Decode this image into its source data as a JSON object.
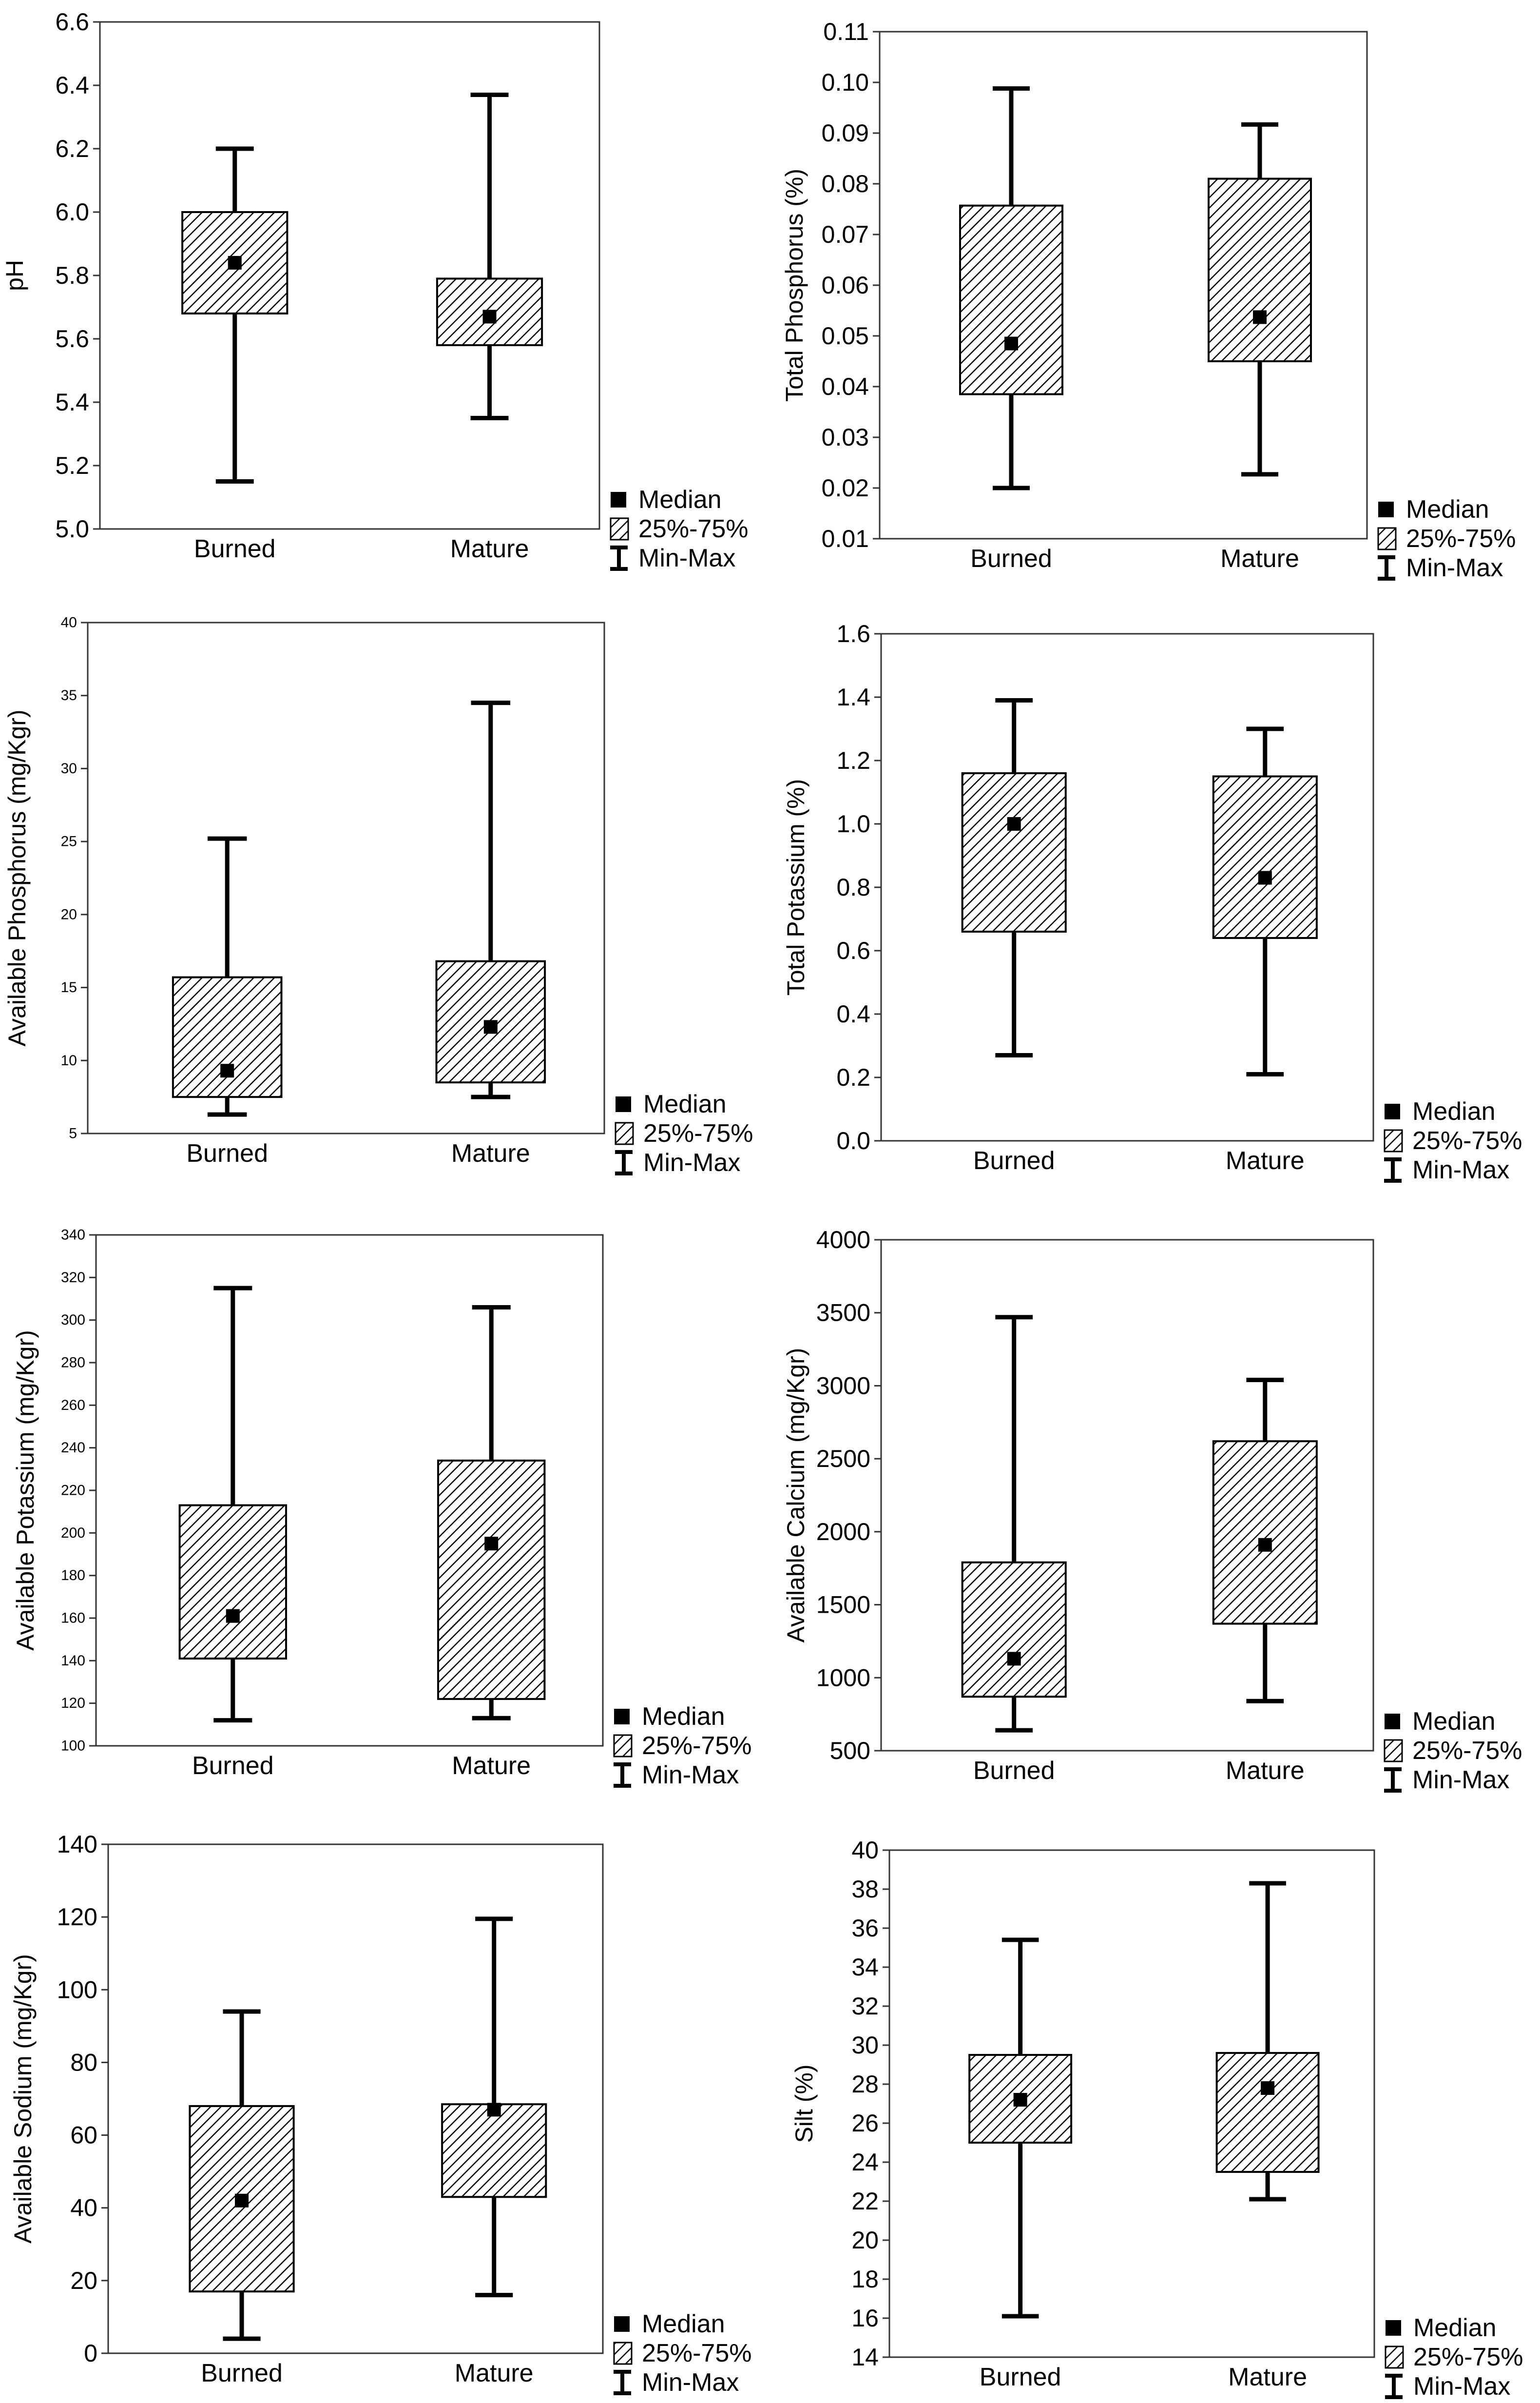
{
  "chart_data": [
    {
      "type": "boxplot",
      "ylabel": "pH",
      "ylim": [
        5.0,
        6.6
      ],
      "yticks": [
        "5.0",
        "5.2",
        "5.4",
        "5.6",
        "5.8",
        "6.0",
        "6.2",
        "6.4",
        "6.6"
      ],
      "categories": [
        "Burned",
        "Mature"
      ],
      "boxes": [
        {
          "min": 5.15,
          "q1": 5.68,
          "median": 5.84,
          "q3": 6.0,
          "max": 6.2
        },
        {
          "min": 5.35,
          "q1": 5.58,
          "median": 5.67,
          "q3": 5.79,
          "max": 6.37
        }
      ],
      "grid": true
    },
    {
      "type": "boxplot",
      "ylabel": "Total Phosphorus (%)",
      "ylim": [
        0.01,
        0.11
      ],
      "yticks": [
        "0.01",
        "0.02",
        "0.03",
        "0.04",
        "0.05",
        "0.06",
        "0.07",
        "0.08",
        "0.09",
        "0.10",
        "0.11"
      ],
      "categories": [
        "Burned",
        "Mature"
      ],
      "boxes": [
        {
          "min": 0.02,
          "q1": 0.0385,
          "median": 0.0485,
          "q3": 0.0757,
          "max": 0.0988
        },
        {
          "min": 0.0227,
          "q1": 0.045,
          "median": 0.0537,
          "q3": 0.081,
          "max": 0.0917
        }
      ],
      "grid": true
    },
    {
      "type": "boxplot",
      "ylabel": "Available Phosphorus (mg/Kgr)",
      "ylim": [
        5,
        40
      ],
      "yticks": [
        "5",
        "10",
        "15",
        "20",
        "25",
        "30",
        "35",
        "40"
      ],
      "categories": [
        "Burned",
        "Mature"
      ],
      "boxes": [
        {
          "min": 6.3,
          "q1": 7.5,
          "median": 9.3,
          "q3": 15.7,
          "max": 25.2
        },
        {
          "min": 7.5,
          "q1": 8.5,
          "median": 12.3,
          "q3": 16.8,
          "max": 34.5
        }
      ],
      "grid": true
    },
    {
      "type": "boxplot",
      "ylabel": "Total Potassium (%)",
      "ylim": [
        0.0,
        1.6
      ],
      "yticks": [
        "0.0",
        "0.2",
        "0.4",
        "0.6",
        "0.8",
        "1.0",
        "1.2",
        "1.4",
        "1.6"
      ],
      "categories": [
        "Burned",
        "Mature"
      ],
      "boxes": [
        {
          "min": 0.27,
          "q1": 0.66,
          "median": 1.0,
          "q3": 1.16,
          "max": 1.39
        },
        {
          "min": 0.21,
          "q1": 0.64,
          "median": 0.83,
          "q3": 1.15,
          "max": 1.3
        }
      ],
      "grid": true
    },
    {
      "type": "boxplot",
      "ylabel": "Available Potassium (mg/Kgr)",
      "ylim": [
        100,
        340
      ],
      "yticks": [
        "100",
        "120",
        "140",
        "160",
        "180",
        "200",
        "220",
        "240",
        "260",
        "280",
        "300",
        "320",
        "340"
      ],
      "categories": [
        "Burned",
        "Mature"
      ],
      "boxes": [
        {
          "min": 112,
          "q1": 141,
          "median": 161,
          "q3": 213,
          "max": 315
        },
        {
          "min": 113,
          "q1": 122,
          "median": 195,
          "q3": 234,
          "max": 306
        }
      ],
      "grid": true
    },
    {
      "type": "boxplot",
      "ylabel": "Available Calcium (mg/Kgr)",
      "ylim": [
        500,
        4000
      ],
      "yticks": [
        "500",
        "1000",
        "1500",
        "2000",
        "2500",
        "3000",
        "3500",
        "4000"
      ],
      "categories": [
        "Burned",
        "Mature"
      ],
      "boxes": [
        {
          "min": 640,
          "q1": 870,
          "median": 1130,
          "q3": 1790,
          "max": 3470
        },
        {
          "min": 840,
          "q1": 1370,
          "median": 1910,
          "q3": 2620,
          "max": 3040
        }
      ],
      "grid": true
    },
    {
      "type": "boxplot",
      "ylabel": "Available Sodium (mg/Kgr)",
      "ylim": [
        0,
        140
      ],
      "yticks": [
        "0",
        "20",
        "40",
        "60",
        "80",
        "100",
        "120",
        "140"
      ],
      "categories": [
        "Burned",
        "Mature"
      ],
      "boxes": [
        {
          "min": 4,
          "q1": 17,
          "median": 42,
          "q3": 68,
          "max": 94
        },
        {
          "min": 16,
          "q1": 43,
          "median": 67,
          "q3": 68.5,
          "max": 119.5
        }
      ],
      "grid": true
    },
    {
      "type": "boxplot",
      "ylabel": "Silt (%)",
      "ylim": [
        14,
        40
      ],
      "yticks": [
        "14",
        "16",
        "18",
        "20",
        "22",
        "24",
        "26",
        "28",
        "30",
        "32",
        "34",
        "36",
        "38",
        "40"
      ],
      "categories": [
        "Burned",
        "Mature"
      ],
      "boxes": [
        {
          "min": 16.1,
          "q1": 25.0,
          "median": 27.2,
          "q3": 29.5,
          "max": 35.4
        },
        {
          "min": 22.1,
          "q1": 23.5,
          "median": 27.8,
          "q3": 29.6,
          "max": 38.3
        }
      ],
      "grid": true
    }
  ],
  "legend": {
    "median": "Median",
    "iqr": "25%-75%",
    "range": "Min-Max"
  }
}
